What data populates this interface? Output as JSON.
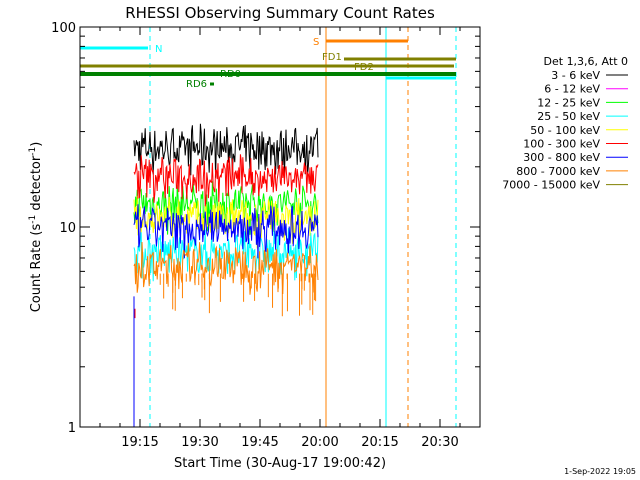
{
  "chart_data": {
    "type": "line",
    "title": "RHESSI Observing Summary Count Rates",
    "xlabel": "Start Time (30-Aug-17 19:00:42)",
    "ylabel_main": "Count Rate (s",
    "ylabel_sup": "-1",
    "ylabel_rest": " detector",
    "ylabel_sup2": "-1",
    "ylabel_end": ")",
    "yscale": "log",
    "ylim": [
      1,
      100
    ],
    "xlim_minutes": [
      0,
      100
    ],
    "x_ticks": [
      "19:15",
      "19:30",
      "19:45",
      "20:00",
      "20:15",
      "20:30"
    ],
    "x_tick_minutes": [
      15,
      30,
      45,
      60,
      75,
      90
    ],
    "y_ticks": [
      "1",
      "10",
      "100"
    ],
    "y_tick_values": [
      1,
      10,
      100
    ],
    "footer": "1-Sep-2022 19:05",
    "legend_header": "Det 1,3,6, Att 0",
    "series": [
      {
        "name": "3 - 6 keV",
        "color": "#000000",
        "level": 25
      },
      {
        "name": "6 - 12 keV",
        "color": "#ff00ff",
        "level": null
      },
      {
        "name": "12 - 25 keV",
        "color": "#00ff00",
        "level": 13
      },
      {
        "name": "25 - 50 keV",
        "color": "#00ffff",
        "level": 7.5
      },
      {
        "name": "50 - 100 keV",
        "color": "#ffff00",
        "level": 11
      },
      {
        "name": "100 - 300 keV",
        "color": "#ff0000",
        "level": 18
      },
      {
        "name": "300 - 800 keV",
        "color": "#0000ff",
        "level": 10
      },
      {
        "name": "800 - 7000 keV",
        "color": "#ff8000",
        "level": 6.5
      },
      {
        "name": "7000 - 15000 keV",
        "color": "#808000",
        "level": null
      }
    ],
    "data_span_minutes": [
      13.5,
      59.5
    ],
    "flags": [
      {
        "label": "N",
        "color": "#00ffff",
        "segments": [
          [
            0,
            17
          ]
        ]
      },
      {
        "label": "",
        "color": "#00ffff",
        "segments": [
          [
            76.5,
            94
          ]
        ]
      },
      {
        "label": "S",
        "color": "#ff8000",
        "segments": [
          [
            61.5,
            82
          ]
        ]
      },
      {
        "label": "FD1",
        "color": "#808000",
        "segments": [
          [
            0,
            93.5
          ]
        ]
      },
      {
        "label": "FD2",
        "color": "#808000",
        "segments": [
          [
            66,
            94
          ]
        ]
      },
      {
        "label": "RD0",
        "color": "#008000",
        "segments": [
          [
            34,
            35.5
          ]
        ]
      },
      {
        "label": "RD6",
        "color": "#008000",
        "segments": [
          [
            32.5,
            33.5
          ]
        ]
      },
      {
        "label": "",
        "color": "#008000",
        "segments": [
          [
            0,
            94
          ]
        ]
      }
    ],
    "vlines": [
      {
        "minute": 0,
        "color": "#00ffff",
        "dash": false
      },
      {
        "minute": 17.5,
        "color": "#00ffff",
        "dash": true
      },
      {
        "minute": 61.5,
        "color": "#ff8000",
        "dash": false
      },
      {
        "minute": 76.5,
        "color": "#00ffff",
        "dash": false
      },
      {
        "minute": 82,
        "color": "#ff8000",
        "dash": true
      },
      {
        "minute": 94,
        "color": "#00ffff",
        "dash": true
      }
    ]
  }
}
